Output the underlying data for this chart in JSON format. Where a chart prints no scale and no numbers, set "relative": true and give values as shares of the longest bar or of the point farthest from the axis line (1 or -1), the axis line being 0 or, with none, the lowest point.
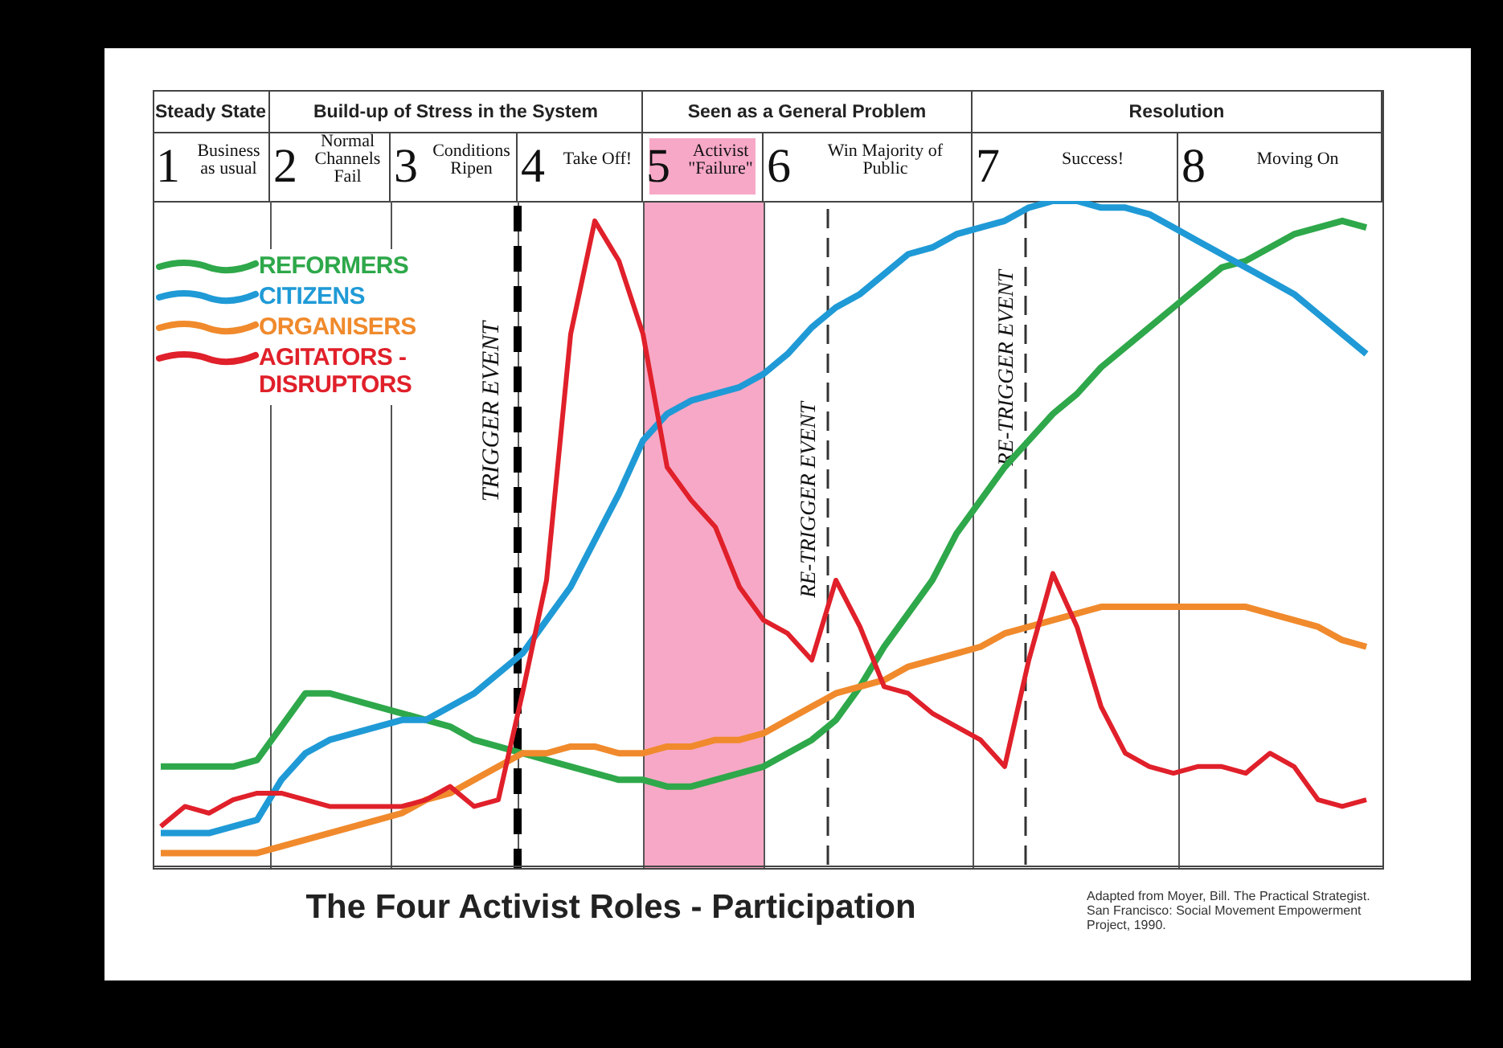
{
  "chart_data": {
    "type": "line",
    "relative": true,
    "title": "The Four Activist Roles - Participation",
    "annotations": [
      "Steady State",
      "Build-up of Stress in the System",
      "Seen as a General Problem",
      "Resolution",
      "1 Business as usual",
      "2 Normal Channels Fail",
      "3 Conditions Ripen",
      "4 Take Off!",
      "5 Activist \"Failure\"",
      "6 Win Majority of Public",
      "7 Success!",
      "8 Moving On",
      "TRIGGER EVENT",
      "RE-TRIGGER EVENT",
      "RE-TRIGGER EVENT",
      "Adapted from Moyer, Bill. The Practical Strategist. San Francisco: Social Movement Empowerment Project, 1990."
    ],
    "categories": [
      null,
      null,
      null,
      null,
      null,
      null,
      null,
      null,
      null,
      null,
      null,
      null,
      null,
      null,
      null,
      null,
      null,
      null,
      null,
      null,
      null,
      null,
      null,
      null,
      null,
      null,
      null,
      null,
      null,
      null,
      null,
      null,
      null,
      null,
      null,
      null,
      null,
      null,
      null,
      null,
      null,
      null,
      null,
      null,
      null,
      null,
      null,
      null,
      null,
      null,
      null
    ],
    "tick_labels": false,
    "grid": "x",
    "legend": "top left",
    "line_style": "solid",
    "series": [
      {
        "name": "REFORMERS",
        "color": "#2ea84a",
        "values": [
          0.15,
          0.15,
          0.15,
          0.15,
          0.16,
          0.21,
          0.26,
          0.26,
          0.25,
          0.24,
          0.23,
          0.22,
          0.21,
          0.19,
          0.18,
          0.17,
          0.16,
          0.15,
          0.14,
          0.13,
          0.13,
          0.12,
          0.12,
          0.13,
          0.14,
          0.15,
          0.17,
          0.19,
          0.22,
          0.27,
          0.33,
          0.38,
          0.43,
          0.5,
          0.55,
          0.6,
          0.64,
          0.68,
          0.71,
          0.75,
          0.78,
          0.81,
          0.84,
          0.87,
          0.9,
          0.91,
          0.93,
          0.95,
          0.96,
          0.97,
          0.96
        ]
      },
      {
        "name": "CITIZENS",
        "color": "#1f9ad6",
        "values": [
          0.05,
          0.05,
          0.05,
          0.06,
          0.07,
          0.13,
          0.17,
          0.19,
          0.2,
          0.21,
          0.22,
          0.22,
          0.24,
          0.26,
          0.29,
          0.32,
          0.37,
          0.42,
          0.49,
          0.56,
          0.64,
          0.68,
          0.7,
          0.71,
          0.72,
          0.74,
          0.77,
          0.81,
          0.84,
          0.86,
          0.89,
          0.92,
          0.93,
          0.95,
          0.96,
          0.97,
          0.99,
          1.0,
          1.0,
          0.99,
          0.99,
          0.98,
          0.96,
          0.94,
          0.92,
          0.9,
          0.88,
          0.86,
          0.83,
          0.8,
          0.77
        ]
      },
      {
        "name": "ORGANISERS",
        "color": "#f08a2c",
        "values": [
          0.02,
          0.02,
          0.02,
          0.02,
          0.02,
          0.03,
          0.04,
          0.05,
          0.06,
          0.07,
          0.08,
          0.1,
          0.11,
          0.13,
          0.15,
          0.17,
          0.17,
          0.18,
          0.18,
          0.17,
          0.17,
          0.18,
          0.18,
          0.19,
          0.19,
          0.2,
          0.22,
          0.24,
          0.26,
          0.27,
          0.28,
          0.3,
          0.31,
          0.32,
          0.33,
          0.35,
          0.36,
          0.37,
          0.38,
          0.39,
          0.39,
          0.39,
          0.39,
          0.39,
          0.39,
          0.39,
          0.38,
          0.37,
          0.36,
          0.34,
          0.33
        ]
      },
      {
        "name": "AGITATORS -DISRUPTORS",
        "color": "#e0202a",
        "values": [
          0.06,
          0.09,
          0.08,
          0.1,
          0.11,
          0.11,
          0.1,
          0.09,
          0.09,
          0.09,
          0.09,
          0.1,
          0.12,
          0.09,
          0.1,
          0.26,
          0.43,
          0.8,
          0.97,
          0.91,
          0.8,
          0.6,
          0.55,
          0.51,
          0.42,
          0.37,
          0.35,
          0.31,
          0.43,
          0.36,
          0.27,
          0.26,
          0.23,
          0.21,
          0.19,
          0.15,
          0.31,
          0.44,
          0.36,
          0.24,
          0.17,
          0.15,
          0.14,
          0.15,
          0.15,
          0.14,
          0.17,
          0.15,
          0.1,
          0.09,
          0.1
        ]
      }
    ]
  }
}
